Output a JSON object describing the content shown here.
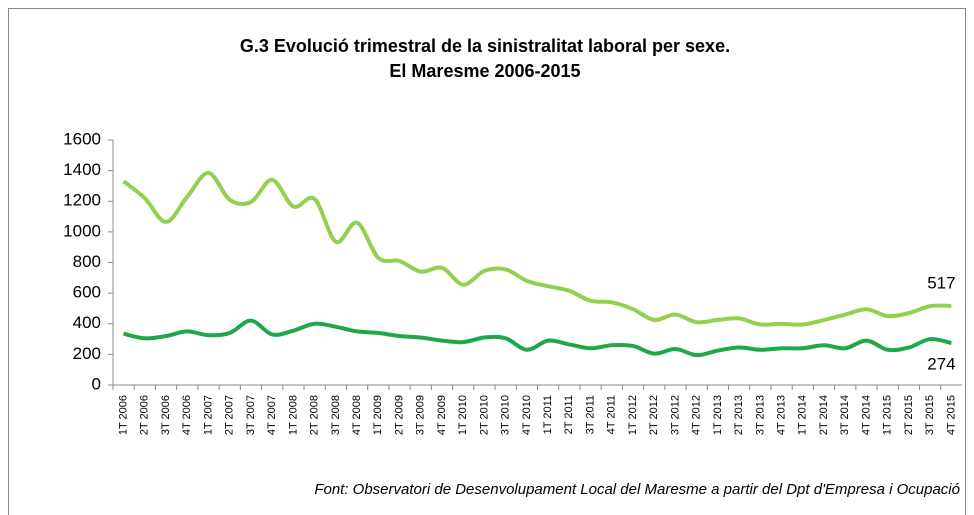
{
  "chart_data": {
    "type": "line",
    "title": "G.3 Evolució trimestral de la sinistralitat laboral per sexe.",
    "subtitle": "El Maresme 2006-2015",
    "source": "Font: Observatori de Desenvolupament Local del Maresme a partir del Dpt d'Empresa i Ocupació",
    "categories": [
      "1T 2006",
      "2T 2006",
      "3T 2006",
      "4T 2006",
      "1T 2007",
      "2T 2007",
      "3T 2007",
      "4T 2007",
      "1T 2008",
      "2T 2008",
      "3T 2008",
      "4T 2008",
      "1T 2009",
      "2T 2009",
      "3T 2009",
      "4T 2009",
      "1T 2010",
      "2T 2010",
      "3T 2010",
      "4T 2010",
      "1T 2011",
      "2T 2011",
      "3T 2011",
      "4T 2011",
      "1T 2012",
      "2T 2012",
      "3T 2012",
      "4T 2012",
      "1T 2013",
      "2T 2013",
      "3T 2013",
      "4T 2013",
      "1T 2014",
      "2T 2014",
      "3T 2014",
      "4T 2014",
      "1T 2015",
      "2T 2015",
      "3T 2015",
      "4T 2015"
    ],
    "series": [
      {
        "color": "#92d050",
        "values": [
          1330,
          1220,
          1065,
          1230,
          1385,
          1210,
          1195,
          1340,
          1165,
          1215,
          935,
          1060,
          830,
          810,
          740,
          765,
          655,
          745,
          755,
          680,
          645,
          615,
          550,
          540,
          495,
          425,
          460,
          410,
          425,
          435,
          395,
          400,
          395,
          425,
          460,
          495,
          450,
          470,
          515,
          517
        ]
      },
      {
        "color": "#1fa84a",
        "values": [
          335,
          305,
          320,
          350,
          325,
          340,
          420,
          330,
          355,
          400,
          380,
          350,
          340,
          320,
          310,
          290,
          280,
          310,
          305,
          230,
          290,
          265,
          240,
          260,
          255,
          205,
          235,
          195,
          225,
          245,
          230,
          240,
          240,
          260,
          240,
          290,
          230,
          245,
          300,
          274
        ]
      }
    ],
    "ylim": [
      0,
      1600
    ],
    "yticks": [
      0,
      200,
      400,
      600,
      800,
      1000,
      1200,
      1400,
      1600
    ],
    "grid": false
  }
}
